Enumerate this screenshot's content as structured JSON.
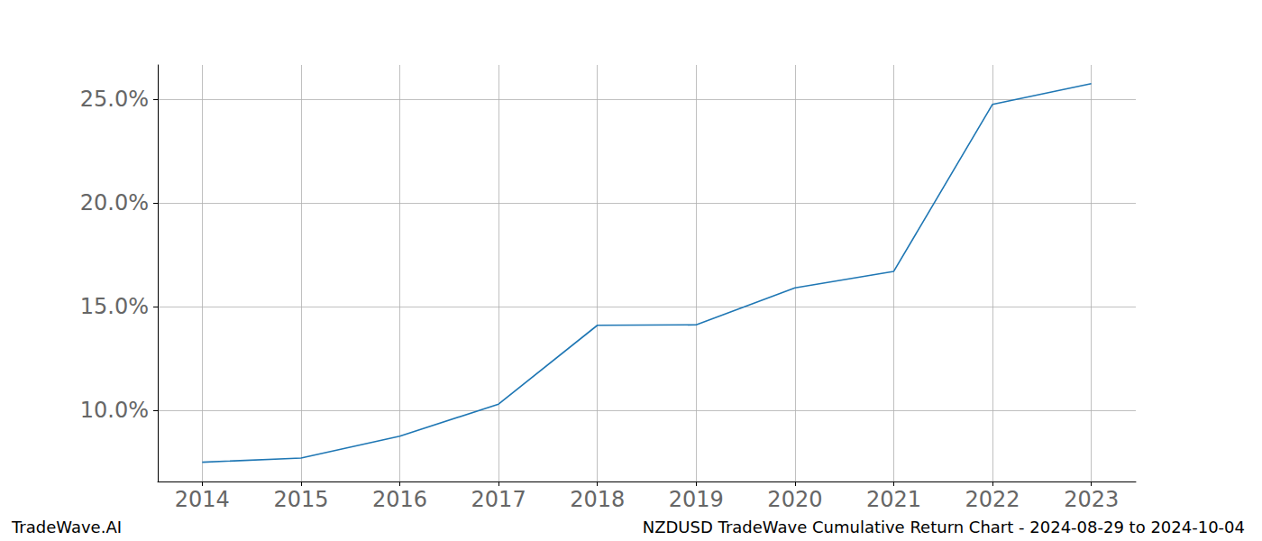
{
  "chart_data": {
    "type": "line",
    "annotations": [
      "TradeWave.AI",
      "NZDUSD TradeWave Cumulative Return Chart - 2024-08-29 to 2024-10-04"
    ],
    "x": [
      2014,
      2015,
      2016,
      2017,
      2018,
      2019,
      2020,
      2021,
      2022,
      2023
    ],
    "values": [
      7.5,
      7.7,
      8.75,
      10.3,
      14.1,
      14.12,
      15.9,
      16.7,
      24.75,
      25.75
    ],
    "color": "#1f77b4",
    "xlim": [
      2013.55,
      2023.45
    ],
    "xticks": [
      2014,
      2015,
      2016,
      2017,
      2018,
      2019,
      2020,
      2021,
      2022,
      2023
    ],
    "ylim": [
      6.57,
      26.65
    ],
    "yticks": [
      {
        "value": 10,
        "label": "10.0%"
      },
      {
        "value": 15,
        "label": "15.0%"
      },
      {
        "value": 20,
        "label": "20.0%"
      },
      {
        "value": 25,
        "label": "25.0%"
      }
    ],
    "grid": true
  }
}
